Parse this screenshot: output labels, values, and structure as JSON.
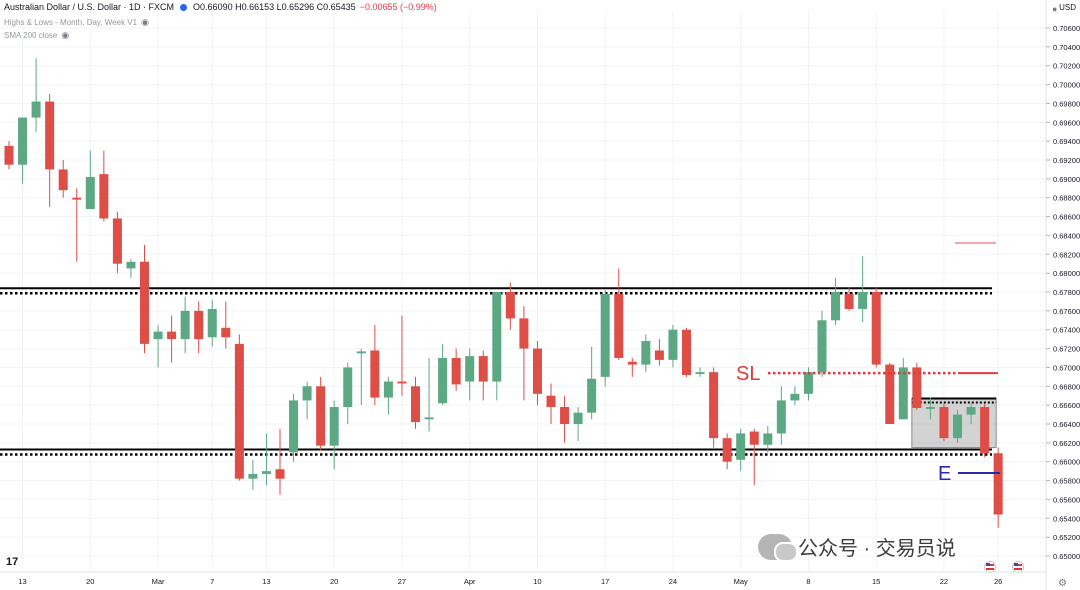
{
  "header": {
    "symbol": "Australian Dollar / U.S. Dollar · 1D · FXCM",
    "ohlc": "O0.66090 H0.66153 L0.65296 C0.65435",
    "change": "−0.00655 (−0.99%)"
  },
  "indicators": [
    {
      "label": "Highs & Lows - Month, Day, Week V1"
    },
    {
      "label": "SMA 200 close"
    }
  ],
  "currency": "USD",
  "watermark": "公众号 · 交易员说",
  "tv_logo": "17",
  "colors": {
    "up": "#5ba883",
    "down": "#dd4e46",
    "level": "#000000",
    "sl": "#e03a3a",
    "entry": "#2a2ab0",
    "zone": "#9e9e9e"
  },
  "chart_data": {
    "type": "candlestick",
    "y_axis": {
      "min": 0.649,
      "max": 0.7068,
      "ticks": [
        "0.70600",
        "0.70400",
        "0.70200",
        "0.70000",
        "0.69800",
        "0.69600",
        "0.69400",
        "0.69200",
        "0.69000",
        "0.68800",
        "0.68600",
        "0.68400",
        "0.68200",
        "0.68000",
        "0.67800",
        "0.67600",
        "0.67400",
        "0.67200",
        "0.67000",
        "0.66800",
        "0.66600",
        "0.66400",
        "0.66200",
        "0.66000",
        "0.65800",
        "0.65600",
        "0.65400",
        "0.65200",
        "0.65000"
      ]
    },
    "x_axis": {
      "labels": [
        {
          "text": "13",
          "index": 1
        },
        {
          "text": "20",
          "index": 6
        },
        {
          "text": "Mar",
          "index": 11
        },
        {
          "text": "7",
          "index": 15
        },
        {
          "text": "13",
          "index": 19
        },
        {
          "text": "20",
          "index": 24
        },
        {
          "text": "27",
          "index": 29
        },
        {
          "text": "Apr",
          "index": 34
        },
        {
          "text": "10",
          "index": 39
        },
        {
          "text": "17",
          "index": 44
        },
        {
          "text": "24",
          "index": 49
        },
        {
          "text": "May",
          "index": 54
        },
        {
          "text": "8",
          "index": 59
        },
        {
          "text": "15",
          "index": 64
        },
        {
          "text": "22",
          "index": 69
        },
        {
          "text": "26",
          "index": 73
        }
      ]
    },
    "candles": [
      {
        "o": 0.6935,
        "h": 0.694,
        "l": 0.691,
        "c": 0.6915
      },
      {
        "o": 0.6915,
        "h": 0.696,
        "l": 0.6895,
        "c": 0.6965
      },
      {
        "o": 0.6965,
        "h": 0.7028,
        "l": 0.695,
        "c": 0.6982
      },
      {
        "o": 0.6982,
        "h": 0.699,
        "l": 0.687,
        "c": 0.691
      },
      {
        "o": 0.691,
        "h": 0.692,
        "l": 0.688,
        "c": 0.6888
      },
      {
        "o": 0.688,
        "h": 0.689,
        "l": 0.6812,
        "c": 0.6878
      },
      {
        "o": 0.6868,
        "h": 0.693,
        "l": 0.6868,
        "c": 0.6902
      },
      {
        "o": 0.6905,
        "h": 0.693,
        "l": 0.6855,
        "c": 0.6858
      },
      {
        "o": 0.6858,
        "h": 0.6865,
        "l": 0.68,
        "c": 0.681
      },
      {
        "o": 0.6805,
        "h": 0.6815,
        "l": 0.6795,
        "c": 0.6812
      },
      {
        "o": 0.6812,
        "h": 0.683,
        "l": 0.6715,
        "c": 0.6725
      },
      {
        "o": 0.673,
        "h": 0.6745,
        "l": 0.67,
        "c": 0.6738
      },
      {
        "o": 0.6738,
        "h": 0.6755,
        "l": 0.6705,
        "c": 0.673
      },
      {
        "o": 0.673,
        "h": 0.6775,
        "l": 0.6715,
        "c": 0.676
      },
      {
        "o": 0.676,
        "h": 0.677,
        "l": 0.6715,
        "c": 0.673
      },
      {
        "o": 0.6732,
        "h": 0.6772,
        "l": 0.6722,
        "c": 0.6762
      },
      {
        "o": 0.6742,
        "h": 0.677,
        "l": 0.672,
        "c": 0.6732
      },
      {
        "o": 0.6725,
        "h": 0.6735,
        "l": 0.658,
        "c": 0.6582
      },
      {
        "o": 0.6582,
        "h": 0.6602,
        "l": 0.657,
        "c": 0.6587
      },
      {
        "o": 0.6587,
        "h": 0.663,
        "l": 0.6575,
        "c": 0.659
      },
      {
        "o": 0.6592,
        "h": 0.6635,
        "l": 0.6565,
        "c": 0.6582
      },
      {
        "o": 0.661,
        "h": 0.6672,
        "l": 0.66,
        "c": 0.6665
      },
      {
        "o": 0.6665,
        "h": 0.6685,
        "l": 0.6645,
        "c": 0.668
      },
      {
        "o": 0.668,
        "h": 0.669,
        "l": 0.6612,
        "c": 0.6617
      },
      {
        "o": 0.6617,
        "h": 0.6665,
        "l": 0.6592,
        "c": 0.6658
      },
      {
        "o": 0.6658,
        "h": 0.6705,
        "l": 0.664,
        "c": 0.67
      },
      {
        "o": 0.6715,
        "h": 0.672,
        "l": 0.666,
        "c": 0.6717
      },
      {
        "o": 0.6718,
        "h": 0.6745,
        "l": 0.666,
        "c": 0.6668
      },
      {
        "o": 0.6668,
        "h": 0.669,
        "l": 0.665,
        "c": 0.6685
      },
      {
        "o": 0.6685,
        "h": 0.6755,
        "l": 0.667,
        "c": 0.6683
      },
      {
        "o": 0.668,
        "h": 0.669,
        "l": 0.6635,
        "c": 0.6642
      },
      {
        "o": 0.6645,
        "h": 0.671,
        "l": 0.6632,
        "c": 0.6647
      },
      {
        "o": 0.6662,
        "h": 0.6725,
        "l": 0.666,
        "c": 0.671
      },
      {
        "o": 0.671,
        "h": 0.672,
        "l": 0.6675,
        "c": 0.6682
      },
      {
        "o": 0.6685,
        "h": 0.672,
        "l": 0.6665,
        "c": 0.6712
      },
      {
        "o": 0.6712,
        "h": 0.6718,
        "l": 0.6665,
        "c": 0.6685
      },
      {
        "o": 0.6685,
        "h": 0.678,
        "l": 0.6665,
        "c": 0.678
      },
      {
        "o": 0.678,
        "h": 0.679,
        "l": 0.674,
        "c": 0.6752
      },
      {
        "o": 0.6752,
        "h": 0.6765,
        "l": 0.6665,
        "c": 0.672
      },
      {
        "o": 0.672,
        "h": 0.6728,
        "l": 0.666,
        "c": 0.6672
      },
      {
        "o": 0.667,
        "h": 0.6683,
        "l": 0.664,
        "c": 0.6658
      },
      {
        "o": 0.6658,
        "h": 0.667,
        "l": 0.662,
        "c": 0.664
      },
      {
        "o": 0.664,
        "h": 0.6658,
        "l": 0.6622,
        "c": 0.6652
      },
      {
        "o": 0.6652,
        "h": 0.6722,
        "l": 0.6645,
        "c": 0.6688
      },
      {
        "o": 0.669,
        "h": 0.6782,
        "l": 0.668,
        "c": 0.6778
      },
      {
        "o": 0.6778,
        "h": 0.6805,
        "l": 0.6708,
        "c": 0.671
      },
      {
        "o": 0.6706,
        "h": 0.671,
        "l": 0.669,
        "c": 0.6703
      },
      {
        "o": 0.6703,
        "h": 0.6735,
        "l": 0.6695,
        "c": 0.6728
      },
      {
        "o": 0.6718,
        "h": 0.673,
        "l": 0.6702,
        "c": 0.6708
      },
      {
        "o": 0.6708,
        "h": 0.6745,
        "l": 0.67,
        "c": 0.674
      },
      {
        "o": 0.674,
        "h": 0.6742,
        "l": 0.669,
        "c": 0.6692
      },
      {
        "o": 0.6693,
        "h": 0.67,
        "l": 0.669,
        "c": 0.6695
      },
      {
        "o": 0.6695,
        "h": 0.67,
        "l": 0.6615,
        "c": 0.6625
      },
      {
        "o": 0.6625,
        "h": 0.663,
        "l": 0.6592,
        "c": 0.66
      },
      {
        "o": 0.6602,
        "h": 0.6635,
        "l": 0.659,
        "c": 0.663
      },
      {
        "o": 0.6632,
        "h": 0.6635,
        "l": 0.6575,
        "c": 0.6618
      },
      {
        "o": 0.6618,
        "h": 0.6638,
        "l": 0.661,
        "c": 0.663
      },
      {
        "o": 0.663,
        "h": 0.668,
        "l": 0.6618,
        "c": 0.6665
      },
      {
        "o": 0.6665,
        "h": 0.668,
        "l": 0.666,
        "c": 0.6672
      },
      {
        "o": 0.6672,
        "h": 0.67,
        "l": 0.6665,
        "c": 0.6695
      },
      {
        "o": 0.6695,
        "h": 0.676,
        "l": 0.669,
        "c": 0.675
      },
      {
        "o": 0.675,
        "h": 0.6795,
        "l": 0.6745,
        "c": 0.678
      },
      {
        "o": 0.6778,
        "h": 0.6785,
        "l": 0.676,
        "c": 0.6762
      },
      {
        "o": 0.6762,
        "h": 0.6818,
        "l": 0.6748,
        "c": 0.678
      },
      {
        "o": 0.678,
        "h": 0.6785,
        "l": 0.67,
        "c": 0.6703
      },
      {
        "o": 0.6703,
        "h": 0.6705,
        "l": 0.664,
        "c": 0.664
      },
      {
        "o": 0.6645,
        "h": 0.671,
        "l": 0.6645,
        "c": 0.67
      },
      {
        "o": 0.67,
        "h": 0.6705,
        "l": 0.6655,
        "c": 0.6657
      },
      {
        "o": 0.6656,
        "h": 0.6668,
        "l": 0.6645,
        "c": 0.6658
      },
      {
        "o": 0.6658,
        "h": 0.6662,
        "l": 0.6622,
        "c": 0.6625
      },
      {
        "o": 0.6625,
        "h": 0.6655,
        "l": 0.662,
        "c": 0.665
      },
      {
        "o": 0.665,
        "h": 0.6662,
        "l": 0.664,
        "c": 0.6658
      },
      {
        "o": 0.6658,
        "h": 0.6662,
        "l": 0.6605,
        "c": 0.6609
      },
      {
        "o": 0.6609,
        "h": 0.6615,
        "l": 0.653,
        "c": 0.6544
      }
    ],
    "levels": [
      {
        "name": "resistance",
        "value": 0.6784
      },
      {
        "name": "support",
        "value": 0.6613
      }
    ],
    "stop_loss": {
      "label": "SL",
      "value": 0.6694
    },
    "entry": {
      "label": "E",
      "value": 0.6588
    },
    "range_box": {
      "top": 0.6667,
      "bottom": 0.6615,
      "from_index": 67,
      "to_index": 73
    },
    "highs_lows_marker": {
      "value": 0.6832
    }
  }
}
